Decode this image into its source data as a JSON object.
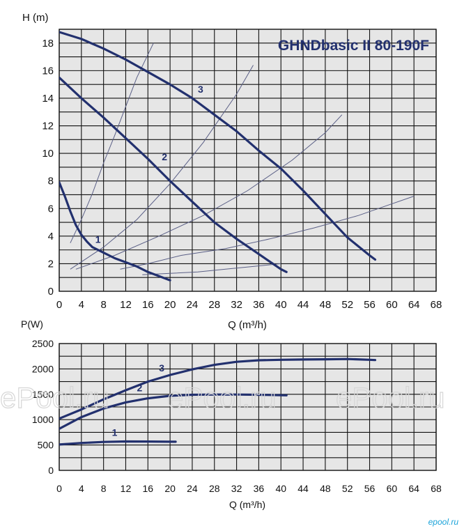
{
  "chart_data": [
    {
      "type": "line",
      "title": "GHNDbasic II 80-190F",
      "ylabel": "H (m)",
      "xlabel": "Q (m³/h)",
      "xlim": [
        0,
        68
      ],
      "ylim": [
        0,
        19
      ],
      "xticks": [
        0,
        4,
        8,
        12,
        16,
        20,
        24,
        28,
        32,
        36,
        40,
        44,
        48,
        52,
        56,
        60,
        64,
        68
      ],
      "yticks": [
        0,
        2,
        4,
        6,
        8,
        10,
        12,
        14,
        16,
        18
      ],
      "grid": true,
      "series": [
        {
          "name": "1",
          "x": [
            0,
            1,
            2,
            3,
            4,
            5,
            6,
            8,
            10,
            12,
            14,
            16,
            18,
            20
          ],
          "y": [
            7.9,
            6.9,
            5.8,
            4.8,
            4.1,
            3.6,
            3.2,
            2.8,
            2.4,
            2.1,
            1.8,
            1.4,
            1.1,
            0.8
          ]
        },
        {
          "name": "2",
          "x": [
            0,
            4,
            8,
            12,
            16,
            20,
            24,
            28,
            32,
            36,
            40,
            41
          ],
          "y": [
            15.5,
            14.0,
            12.6,
            11.1,
            9.6,
            8.0,
            6.5,
            5.0,
            3.8,
            2.7,
            1.6,
            1.4
          ]
        },
        {
          "name": "3",
          "x": [
            0,
            4,
            8,
            12,
            16,
            20,
            24,
            28,
            32,
            36,
            40,
            44,
            48,
            52,
            56,
            57
          ],
          "y": [
            18.8,
            18.3,
            17.6,
            16.8,
            15.9,
            15.0,
            14.0,
            12.8,
            11.6,
            10.2,
            8.9,
            7.3,
            5.6,
            3.9,
            2.6,
            2.3
          ]
        }
      ],
      "system_curves": [
        {
          "x": [
            2,
            4,
            6,
            8,
            10,
            12,
            14,
            17
          ],
          "y": [
            3.5,
            5.2,
            7.1,
            9.3,
            11.3,
            13.4,
            15.5,
            18.0
          ]
        },
        {
          "x": [
            2,
            8,
            14,
            20,
            26,
            32,
            35
          ],
          "y": [
            1.6,
            3.2,
            5.2,
            7.8,
            10.8,
            14.3,
            16.4
          ]
        },
        {
          "x": [
            3,
            10,
            18,
            26,
            34,
            42,
            48,
            51
          ],
          "y": [
            1.6,
            2.6,
            4.0,
            5.5,
            7.3,
            9.5,
            11.5,
            12.8
          ]
        },
        {
          "x": [
            11,
            16,
            22,
            30,
            38,
            46,
            54,
            59,
            64
          ],
          "y": [
            1.6,
            2.0,
            2.6,
            3.1,
            3.8,
            4.6,
            5.5,
            6.2,
            6.9
          ]
        },
        {
          "x": [
            15,
            20,
            25,
            30,
            35,
            40
          ],
          "y": [
            1.2,
            1.3,
            1.4,
            1.6,
            1.8,
            2.0
          ]
        }
      ],
      "curve_labels": [
        {
          "text": "1",
          "x": 7,
          "y": 3.5
        },
        {
          "text": "2",
          "x": 19,
          "y": 9.5
        },
        {
          "text": "3",
          "x": 25.5,
          "y": 14.4
        }
      ],
      "color": "#22306e"
    },
    {
      "type": "line",
      "ylabel": "P(W)",
      "xlabel": "Q (m³/h)",
      "xlim": [
        0,
        68
      ],
      "ylim": [
        0,
        2500
      ],
      "xticks": [
        0,
        4,
        8,
        12,
        16,
        20,
        24,
        28,
        32,
        36,
        40,
        44,
        48,
        52,
        56,
        60,
        64,
        68
      ],
      "yticks": [
        0,
        500,
        1000,
        1500,
        2000,
        2500
      ],
      "grid": true,
      "series": [
        {
          "name": "1",
          "x": [
            0,
            4,
            8,
            12,
            16,
            20,
            21
          ],
          "y": [
            510,
            540,
            560,
            570,
            568,
            565,
            565
          ]
        },
        {
          "name": "2",
          "x": [
            0,
            4,
            8,
            12,
            16,
            20,
            24,
            28,
            32,
            36,
            41
          ],
          "y": [
            820,
            1050,
            1220,
            1340,
            1420,
            1470,
            1490,
            1495,
            1495,
            1490,
            1480
          ]
        },
        {
          "name": "3",
          "x": [
            0,
            4,
            8,
            12,
            16,
            20,
            24,
            28,
            32,
            36,
            40,
            44,
            48,
            52,
            56,
            57
          ],
          "y": [
            1020,
            1200,
            1400,
            1580,
            1750,
            1880,
            1990,
            2080,
            2140,
            2170,
            2180,
            2185,
            2190,
            2195,
            2180,
            2175
          ]
        }
      ],
      "curve_labels": [
        {
          "text": "1",
          "x": 10,
          "y": 680
        },
        {
          "text": "2",
          "x": 14.5,
          "y": 1560
        },
        {
          "text": "3",
          "x": 18.5,
          "y": 1950
        }
      ],
      "color": "#22306e"
    }
  ],
  "watermarks": [
    "ePool.ru",
    "ePool.ru",
    "ePool.ru"
  ],
  "brand": "epool.ru",
  "colors": {
    "curve": "#22306e",
    "grid": "#111111",
    "plot_bg": "#e6e6e6",
    "title": "#22306e"
  }
}
